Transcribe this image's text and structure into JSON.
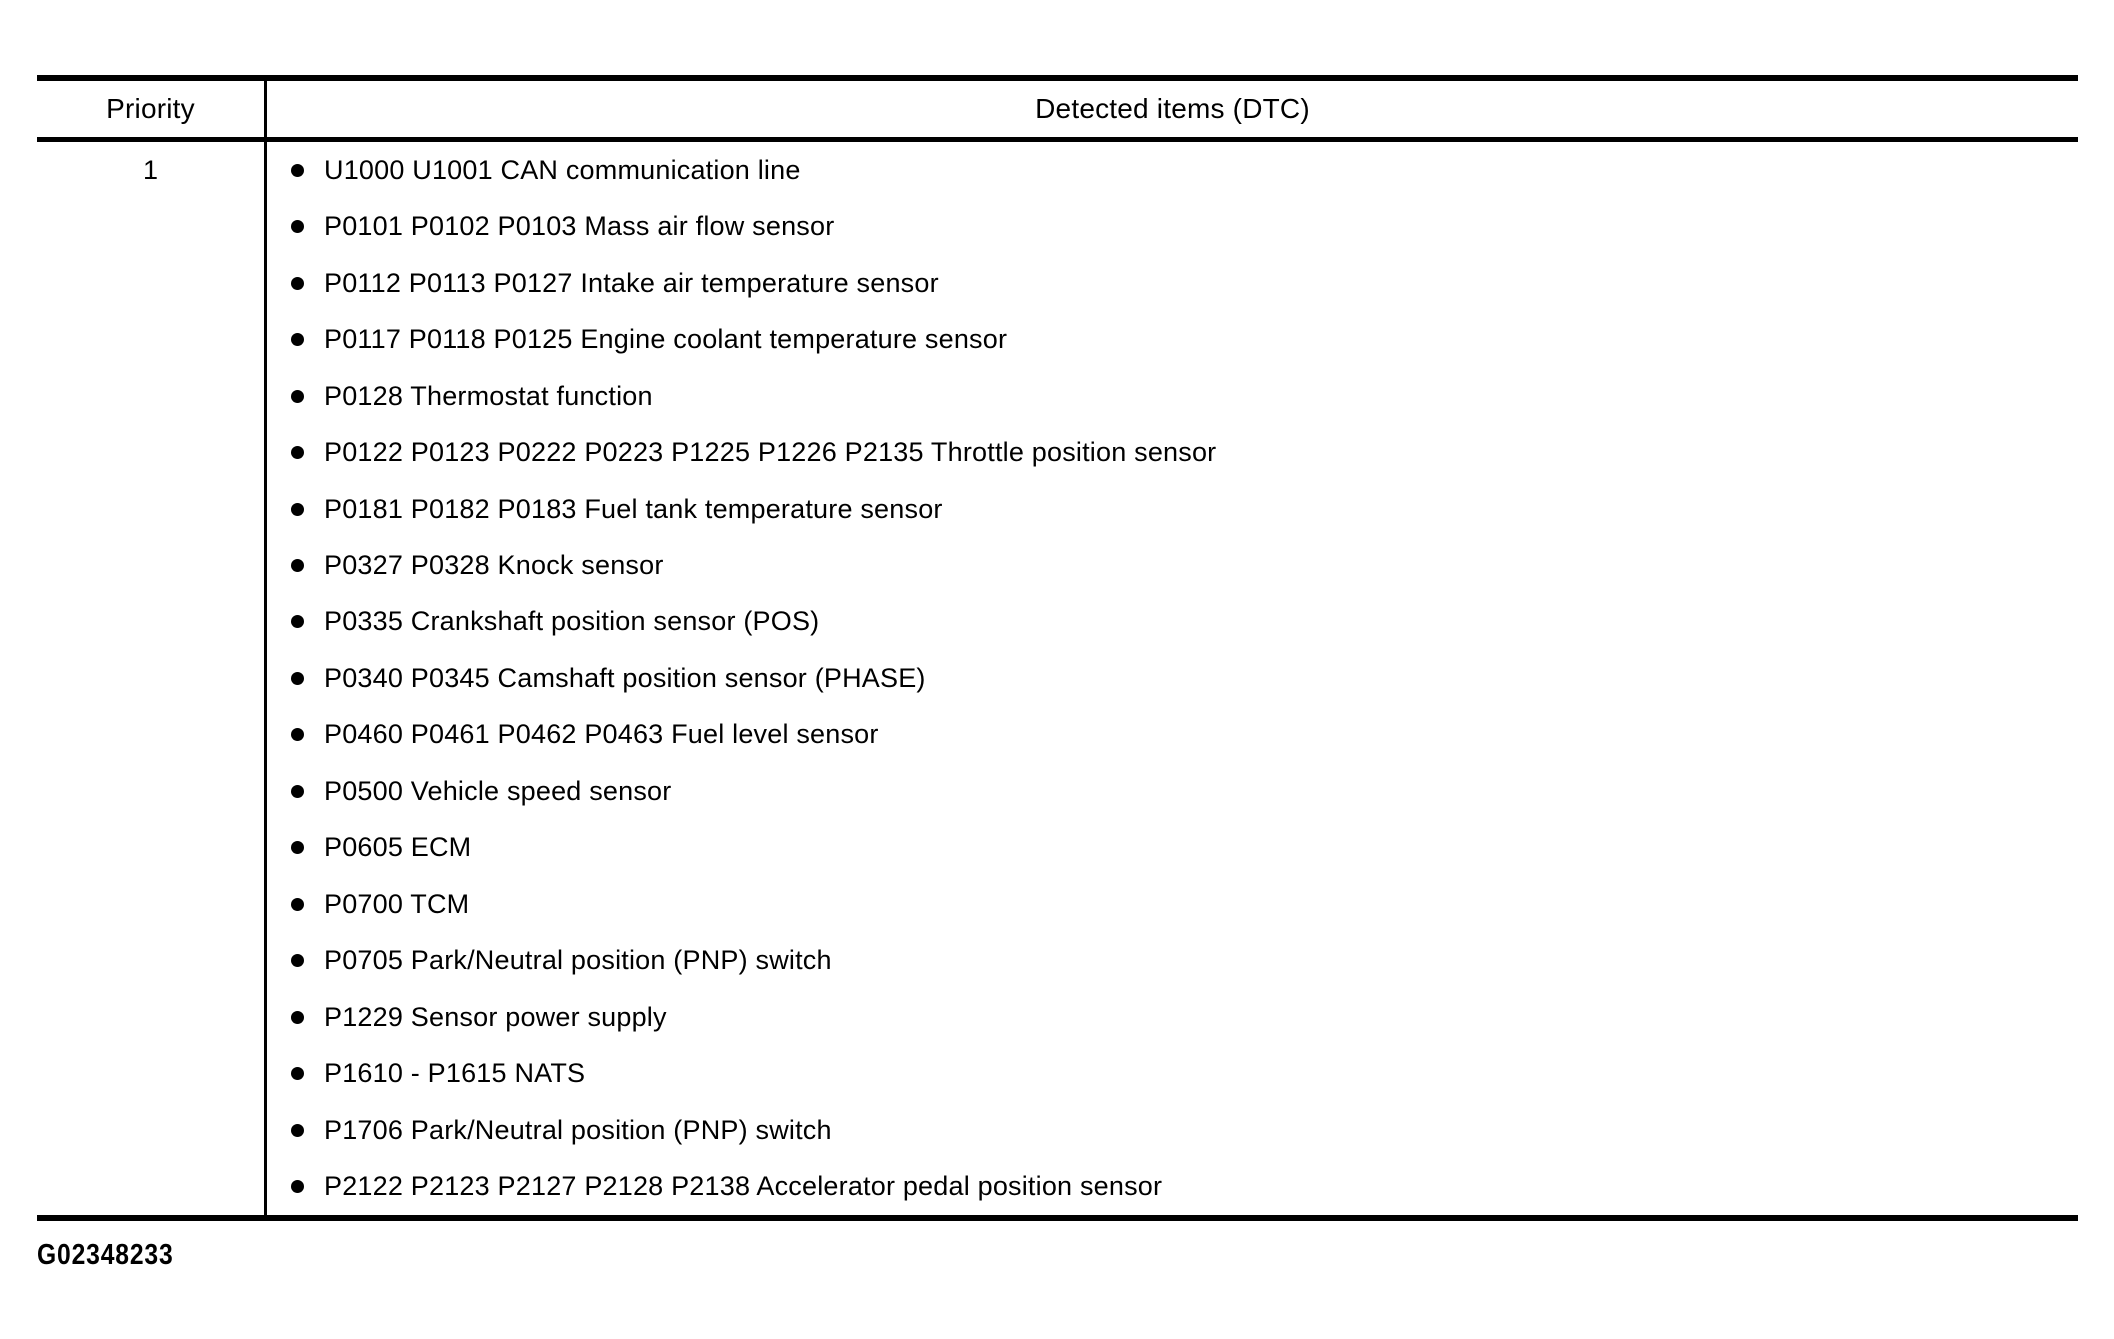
{
  "table": {
    "headers": {
      "priority": "Priority",
      "detected": "Detected items (DTC)"
    },
    "priority_value": "1",
    "items": [
      "U1000 U1001 CAN communication line",
      "P0101 P0102 P0103 Mass air flow sensor",
      "P0112 P0113 P0127 Intake air temperature sensor",
      "P0117 P0118 P0125 Engine coolant temperature sensor",
      "P0128 Thermostat function",
      "P0122 P0123 P0222 P0223 P1225 P1226 P2135 Throttle position sensor",
      "P0181 P0182 P0183 Fuel tank temperature sensor",
      "P0327 P0328 Knock sensor",
      "P0335 Crankshaft position sensor (POS)",
      "P0340 P0345 Camshaft position sensor (PHASE)",
      "P0460 P0461 P0462 P0463 Fuel level sensor",
      "P0500 Vehicle speed sensor",
      "P0605 ECM",
      "P0700 TCM",
      "P0705 Park/Neutral position (PNP) switch",
      "P1229 Sensor power supply",
      "P1610 - P1615 NATS",
      "P1706 Park/Neutral position (PNP) switch",
      "P2122 P2123 P2127 P2128 P2138 Accelerator pedal position sensor"
    ]
  },
  "figure_code": "G02348233",
  "colors": {
    "text": "#000000",
    "border": "#000000",
    "background": "#ffffff",
    "bullet": "#000000"
  }
}
